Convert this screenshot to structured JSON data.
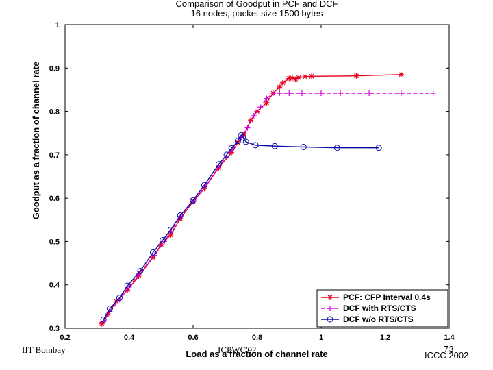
{
  "chart_data": {
    "type": "line",
    "title": "Comparison of Goodput in PCF and DCF",
    "subtitle": "16 nodes, packet size 1500 bytes",
    "xlabel": "Load as a fraction of channel rate",
    "ylabel": "Goodput as a fraction of channel rate",
    "xlim": [
      0.2,
      1.4
    ],
    "ylim": [
      0.3,
      1.0
    ],
    "xticks": [
      "0.2",
      "0.4",
      "0.6",
      "0.8",
      "1",
      "1.2",
      "1.4"
    ],
    "yticks": [
      "0.3",
      "0.4",
      "0.5",
      "0.6",
      "0.7",
      "0.8",
      "0.9",
      "1"
    ],
    "grid": false,
    "legend_position": "bottom-right",
    "series": [
      {
        "name": "PCF: CFP Interval 0.4s",
        "color": "#e8001c",
        "marker": "asterisk",
        "dash": "solid",
        "points": [
          [
            0.315,
            0.31
          ],
          [
            0.335,
            0.333
          ],
          [
            0.36,
            0.362
          ],
          [
            0.395,
            0.388
          ],
          [
            0.43,
            0.42
          ],
          [
            0.475,
            0.463
          ],
          [
            0.5,
            0.493
          ],
          [
            0.53,
            0.515
          ],
          [
            0.56,
            0.553
          ],
          [
            0.6,
            0.592
          ],
          [
            0.635,
            0.622
          ],
          [
            0.68,
            0.67
          ],
          [
            0.72,
            0.705
          ],
          [
            0.74,
            0.728
          ],
          [
            0.76,
            0.748
          ],
          [
            0.78,
            0.78
          ],
          [
            0.8,
            0.8
          ],
          [
            0.83,
            0.82
          ],
          [
            0.85,
            0.842
          ],
          [
            0.87,
            0.856
          ],
          [
            0.88,
            0.866
          ],
          [
            0.9,
            0.876
          ],
          [
            0.91,
            0.877
          ],
          [
            0.92,
            0.874
          ],
          [
            0.93,
            0.878
          ],
          [
            0.95,
            0.88
          ],
          [
            0.97,
            0.881
          ],
          [
            1.11,
            0.882
          ],
          [
            1.25,
            0.885
          ]
        ]
      },
      {
        "name": "DCF with RTS/CTS",
        "color": "#d400d4",
        "marker": "plus",
        "dash": "dashed",
        "points": [
          [
            0.32,
            0.315
          ],
          [
            0.34,
            0.338
          ],
          [
            0.37,
            0.366
          ],
          [
            0.4,
            0.395
          ],
          [
            0.43,
            0.425
          ],
          [
            0.48,
            0.468
          ],
          [
            0.51,
            0.5
          ],
          [
            0.53,
            0.523
          ],
          [
            0.56,
            0.558
          ],
          [
            0.6,
            0.592
          ],
          [
            0.64,
            0.628
          ],
          [
            0.68,
            0.672
          ],
          [
            0.72,
            0.712
          ],
          [
            0.75,
            0.74
          ],
          [
            0.77,
            0.762
          ],
          [
            0.79,
            0.79
          ],
          [
            0.81,
            0.81
          ],
          [
            0.83,
            0.83
          ],
          [
            0.85,
            0.842
          ],
          [
            0.87,
            0.842
          ],
          [
            0.9,
            0.842
          ],
          [
            0.94,
            0.842
          ],
          [
            1.0,
            0.842
          ],
          [
            1.06,
            0.842
          ],
          [
            1.15,
            0.842
          ],
          [
            1.25,
            0.842
          ],
          [
            1.35,
            0.842
          ]
        ]
      },
      {
        "name": "DCF w/o RTS/CTS",
        "color": "#0a0aa0",
        "marker": "circle",
        "dash": "solid",
        "points": [
          [
            0.32,
            0.32
          ],
          [
            0.34,
            0.345
          ],
          [
            0.37,
            0.37
          ],
          [
            0.395,
            0.398
          ],
          [
            0.435,
            0.432
          ],
          [
            0.475,
            0.475
          ],
          [
            0.505,
            0.503
          ],
          [
            0.53,
            0.527
          ],
          [
            0.56,
            0.56
          ],
          [
            0.6,
            0.595
          ],
          [
            0.635,
            0.63
          ],
          [
            0.68,
            0.678
          ],
          [
            0.705,
            0.7
          ],
          [
            0.72,
            0.715
          ],
          [
            0.74,
            0.732
          ],
          [
            0.75,
            0.745
          ],
          [
            0.755,
            0.74
          ],
          [
            0.765,
            0.73
          ],
          [
            0.795,
            0.722
          ],
          [
            0.855,
            0.72
          ],
          [
            0.945,
            0.718
          ],
          [
            1.05,
            0.716
          ],
          [
            1.18,
            0.716
          ]
        ]
      }
    ]
  },
  "footer": {
    "left": "IIT Bombay",
    "center": "ICPWC'02",
    "page_number": "73",
    "right": "ICCC 2002"
  }
}
